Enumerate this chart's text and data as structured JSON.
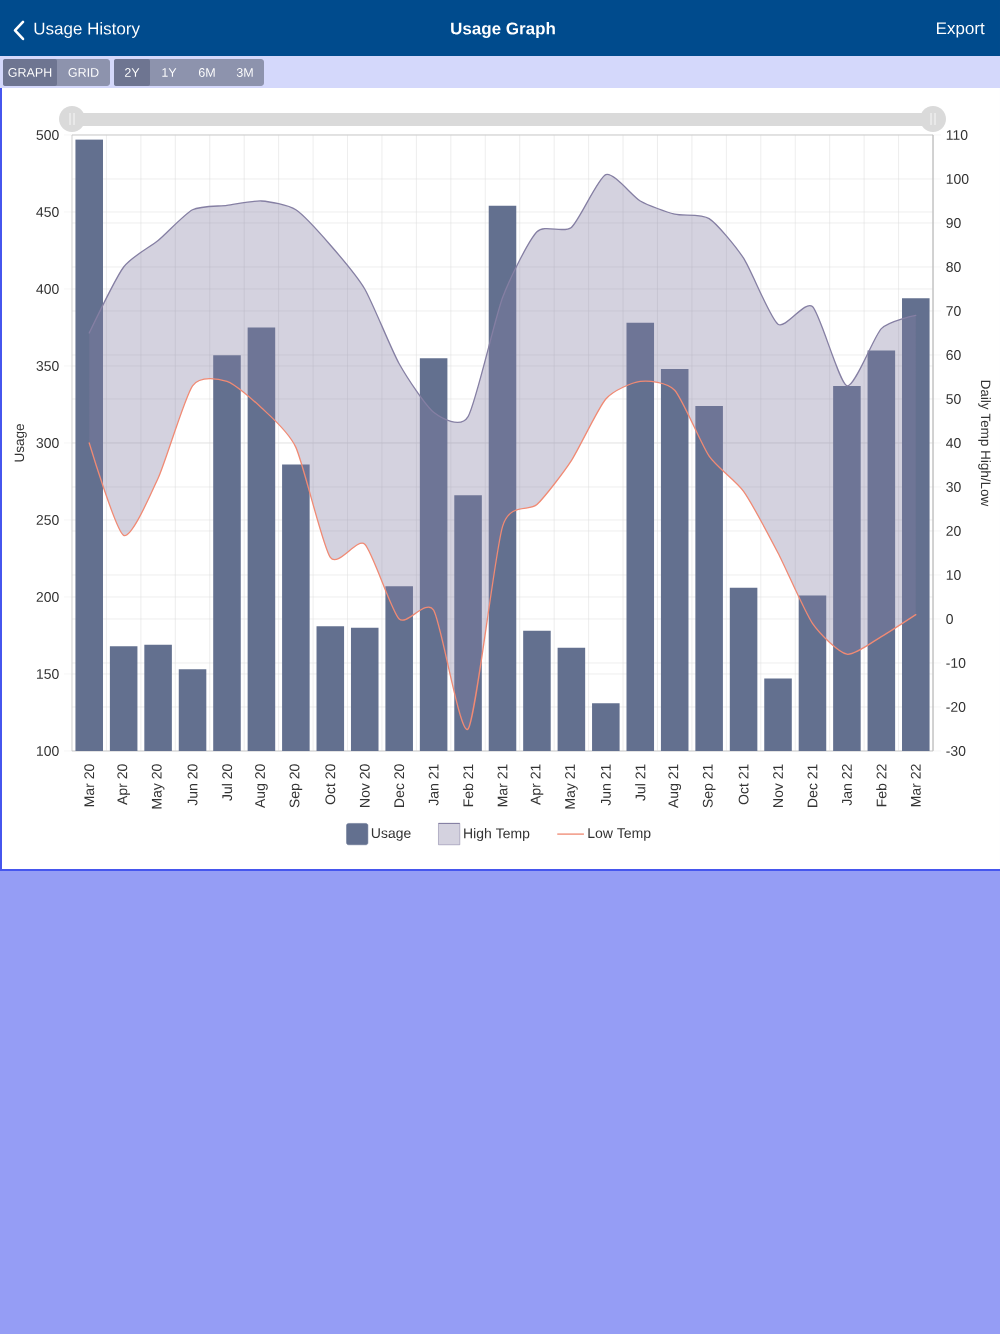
{
  "chart_data": {
    "type": "bar",
    "title": "Usage Graph",
    "annotations": [
      "Usage History",
      "Export",
      "GRAPH",
      "GRID",
      "2Y",
      "1Y",
      "6M",
      "3M"
    ],
    "ylabel": "Usage",
    "y2label": "Daily Temp High/Low",
    "categories": [
      "Mar 20",
      "Apr 20",
      "May 20",
      "Jun 20",
      "Jul 20",
      "Aug 20",
      "Sep 20",
      "Oct 20",
      "Nov 20",
      "Dec 20",
      "Jan 21",
      "Feb 21",
      "Mar 21",
      "Apr 21",
      "May 21",
      "Jun 21",
      "Jul 21",
      "Aug 21",
      "Sep 21",
      "Oct 21",
      "Nov 21",
      "Dec 21",
      "Jan 22",
      "Feb 22",
      "Mar 22"
    ],
    "series": [
      {
        "name": "Usage",
        "color": "#63708f",
        "values": [
          497,
          168,
          169,
          153,
          357,
          375,
          286,
          181,
          180,
          207,
          355,
          266,
          454,
          178,
          167,
          131,
          378,
          348,
          324,
          206,
          147,
          201,
          337,
          360,
          394
        ]
      },
      {
        "name": "High Temp",
        "type": "line",
        "axis": "y2",
        "color": "#857fa3",
        "values": [
          65,
          80,
          86,
          93,
          94,
          95,
          93,
          85,
          75,
          58,
          47,
          46,
          73,
          88,
          89,
          101,
          95,
          92,
          91,
          82,
          67,
          71,
          53,
          66,
          69
        ],
        "lower": [
          40,
          19,
          32,
          53,
          54,
          48,
          39,
          14,
          17,
          0,
          2,
          -25,
          21,
          26,
          36,
          50,
          54,
          52,
          37,
          29,
          15,
          -1,
          -8,
          -4,
          1
        ],
        "upper": [
          65,
          80,
          86,
          93,
          94,
          95,
          93,
          85,
          75,
          58,
          47,
          46,
          73,
          88,
          89,
          101,
          95,
          92,
          91,
          82,
          67,
          71,
          53,
          66,
          69
        ]
      },
      {
        "name": "Low Temp",
        "type": "line",
        "axis": "y2",
        "color": "#f08a74",
        "values": [
          40,
          19,
          32,
          53,
          54,
          48,
          39,
          14,
          17,
          0,
          2,
          -25,
          21,
          26,
          36,
          50,
          54,
          52,
          37,
          29,
          15,
          -1,
          -8,
          -4,
          1
        ]
      }
    ],
    "ylim": [
      100,
      500
    ],
    "yticks": [
      100,
      150,
      200,
      250,
      300,
      350,
      400,
      450,
      500
    ],
    "y2lim": [
      -30,
      110
    ],
    "y2ticks": [
      -30,
      -20,
      -10,
      0,
      10,
      20,
      30,
      40,
      50,
      60,
      70,
      80,
      90,
      100,
      110
    ],
    "grid": true,
    "legend": "bottom"
  }
}
